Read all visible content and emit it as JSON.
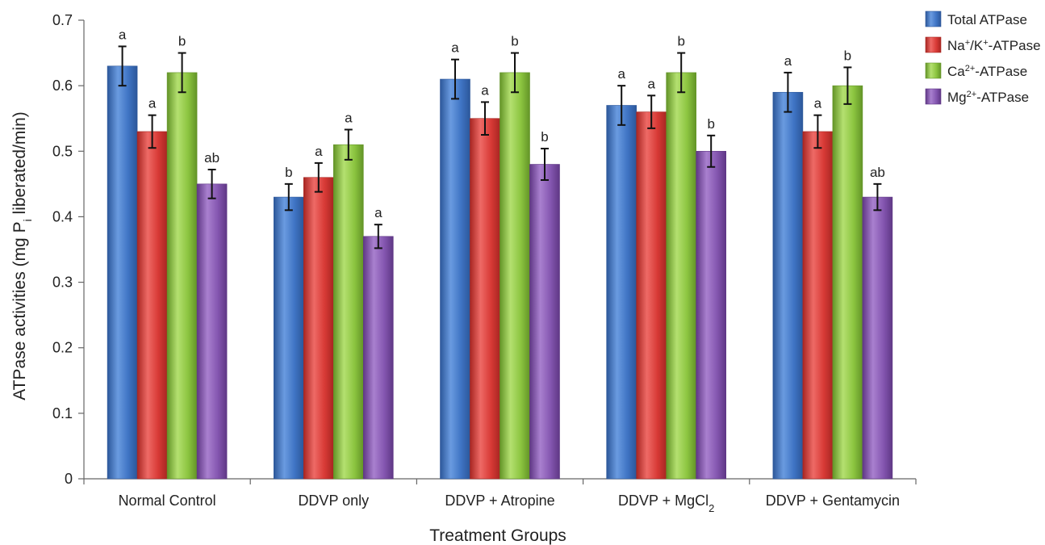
{
  "chart_data": {
    "type": "bar",
    "xlabel": "Treatment Groups",
    "ylabel_parts": {
      "before": "ATPase activities (mg P",
      "sub": "i",
      "after": " liberated/min)"
    },
    "ylim": [
      0,
      0.7
    ],
    "yticks": [
      "0",
      "0.1",
      "0.2",
      "0.3",
      "0.4",
      "0.5",
      "0.6",
      "0.7"
    ],
    "yticks_values": [
      0,
      0.1,
      0.2,
      0.3,
      0.4,
      0.5,
      0.6,
      0.7
    ],
    "grid": false,
    "legend_position": "top-right",
    "categories": [
      {
        "text": "Normal Control",
        "sub": ""
      },
      {
        "text": "DDVP only",
        "sub": ""
      },
      {
        "text": "DDVP + Atropine",
        "sub": ""
      },
      {
        "text": "DDVP + MgCl",
        "sub": "2"
      },
      {
        "text": "DDVP + Gentamycin",
        "sub": ""
      }
    ],
    "series": [
      {
        "name": {
          "before": "Total ATPase",
          "sup": "",
          "after": ""
        },
        "color": "#3f74c4",
        "color_light": "#6a9be0",
        "color_dark": "#2c579a",
        "values": [
          0.63,
          0.43,
          0.61,
          0.57,
          0.59
        ],
        "errors": [
          0.03,
          0.02,
          0.03,
          0.03,
          0.03
        ],
        "letters": [
          "a",
          "b",
          "a",
          "a",
          "a"
        ]
      },
      {
        "name": {
          "before": "Na",
          "sup": "+",
          "after": "/K",
          "sup2": "+",
          "after2": "-ATPase"
        },
        "color": "#d83a36",
        "color_light": "#ee6a66",
        "color_dark": "#a82622",
        "values": [
          0.53,
          0.46,
          0.55,
          0.56,
          0.53
        ],
        "errors": [
          0.025,
          0.022,
          0.025,
          0.025,
          0.025
        ],
        "letters": [
          "a",
          "a",
          "a",
          "a",
          "a"
        ]
      },
      {
        "name": {
          "before": "Ca",
          "sup": "2+",
          "after": "-ATPase"
        },
        "color": "#8cc540",
        "color_light": "#b4e070",
        "color_dark": "#639427",
        "values": [
          0.62,
          0.51,
          0.62,
          0.62,
          0.6
        ],
        "errors": [
          0.03,
          0.023,
          0.03,
          0.03,
          0.028
        ],
        "letters": [
          "b",
          "a",
          "b",
          "b",
          "b"
        ]
      },
      {
        "name": {
          "before": "Mg",
          "sup": "2+",
          "after": "-ATPase"
        },
        "color": "#8456b0",
        "color_light": "#a980cf",
        "color_dark": "#5f3785",
        "values": [
          0.45,
          0.37,
          0.48,
          0.5,
          0.43
        ],
        "errors": [
          0.022,
          0.018,
          0.024,
          0.024,
          0.02
        ],
        "letters": [
          "ab",
          "a",
          "b",
          "b",
          "ab"
        ]
      }
    ]
  }
}
